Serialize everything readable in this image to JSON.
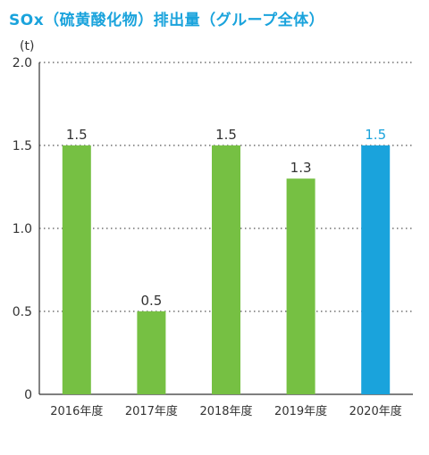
{
  "title": "SOx（硫黄酸化物）排出量（グループ全体）",
  "colors": {
    "title": "#1aa3dc",
    "bar": "#76c043",
    "highlight": "#1aa3dc",
    "grid": "#555555",
    "text": "#333333"
  },
  "chart_data": {
    "type": "bar",
    "title": "SOx（硫黄酸化物）排出量（グループ全体）",
    "unit_label": "(t)",
    "xlabel": "",
    "ylabel": "",
    "categories": [
      "2016年度",
      "2017年度",
      "2018年度",
      "2019年度",
      "2020年度"
    ],
    "values": [
      1.5,
      0.5,
      1.5,
      1.3,
      1.5
    ],
    "value_labels": [
      "1.5",
      "0.5",
      "1.5",
      "1.3",
      "1.5"
    ],
    "highlight_index": 4,
    "ylim": [
      0,
      2.0
    ],
    "yticks": [
      0,
      0.5,
      1.0,
      1.5,
      2.0
    ],
    "ytick_labels": [
      "0",
      "0.5",
      "1.0",
      "1.5",
      "2.0"
    ],
    "grid": true
  }
}
